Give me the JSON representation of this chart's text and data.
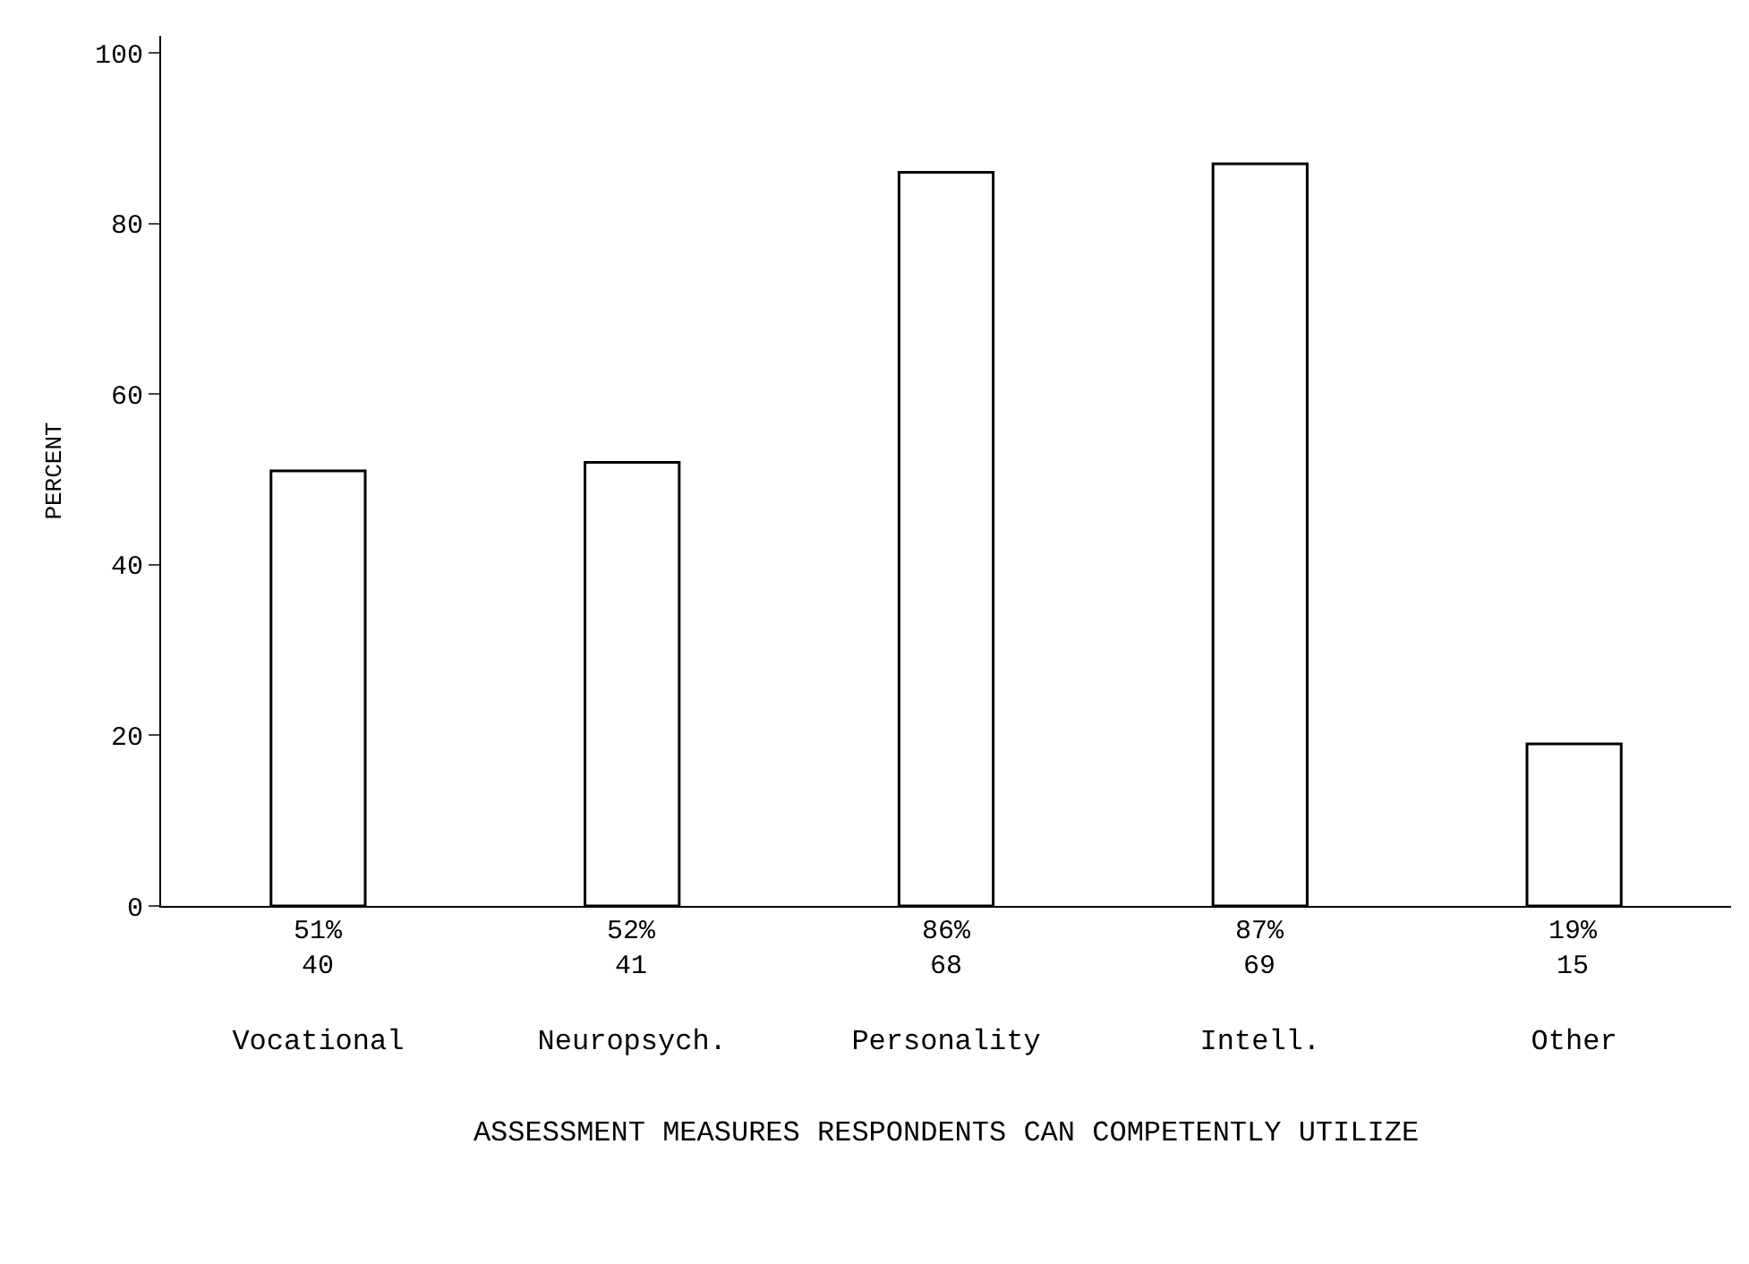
{
  "chart_data": {
    "type": "bar",
    "xlabel": "ASSESSMENT MEASURES RESPONDENTS CAN COMPETENTLY UTILIZE",
    "ylabel": "PERCENT",
    "categories": [
      "Vocational",
      "Neuropsych.",
      "Personality",
      "Intell.",
      "Other"
    ],
    "values": [
      51,
      52,
      86,
      87,
      19
    ],
    "value_labels": [
      "51%\n40",
      "52%\n41",
      "86%\n68",
      "87%\n69",
      "19%\n15"
    ],
    "color": "#ffffff",
    "ylim": [
      0,
      102
    ],
    "yticks": [
      0,
      20,
      40,
      60,
      80,
      100
    ]
  }
}
